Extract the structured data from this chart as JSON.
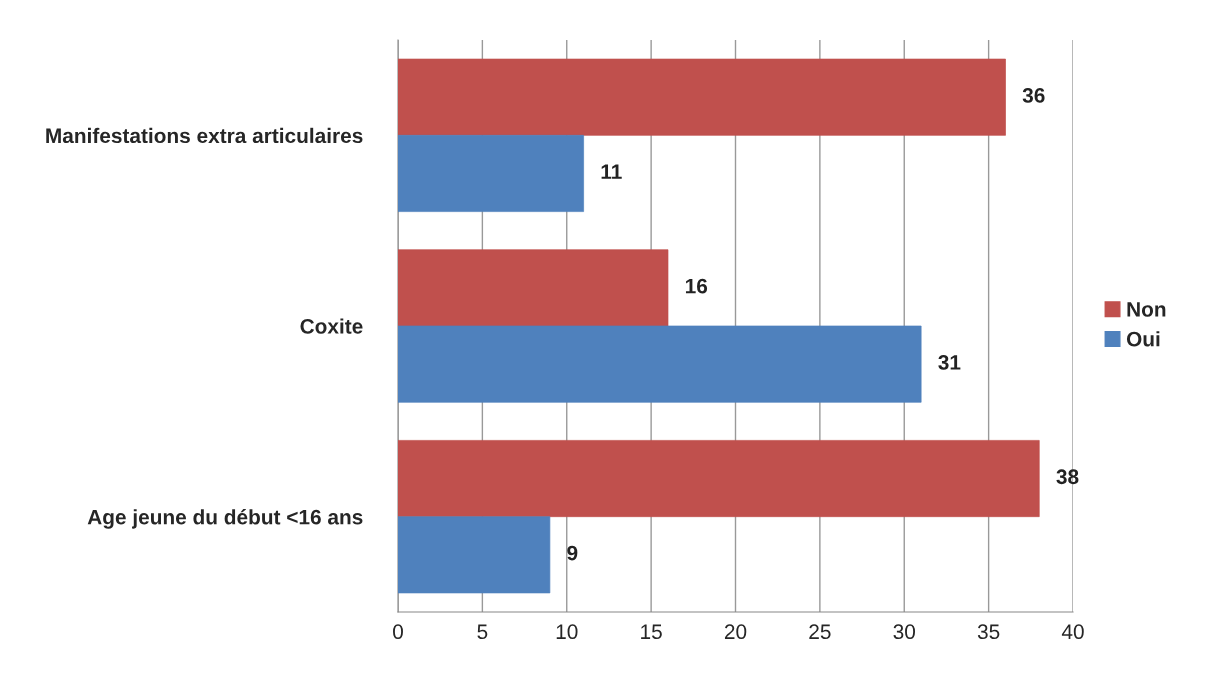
{
  "chart_data": {
    "type": "bar",
    "orientation": "horizontal",
    "categories": [
      "Manifestations extra articulaires",
      "Coxite",
      "Age jeune du début <16 ans"
    ],
    "series": [
      {
        "name": "Non",
        "color": "#c0504d",
        "values": [
          36,
          16,
          38
        ]
      },
      {
        "name": "Oui",
        "color": "#4f81bd",
        "values": [
          11,
          31,
          9
        ]
      }
    ],
    "xlim": [
      0,
      40
    ],
    "xticks": [
      0,
      5,
      10,
      15,
      20,
      25,
      30,
      35,
      40
    ],
    "grid": "x",
    "legend": "right",
    "data_labels": true
  }
}
